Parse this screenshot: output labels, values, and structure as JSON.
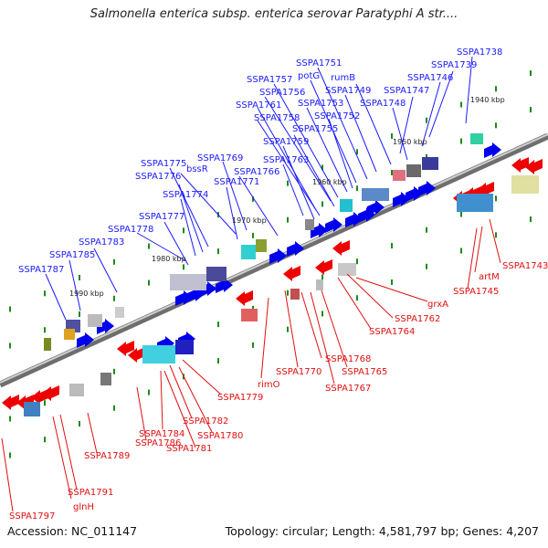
{
  "title": "Salmonella enterica subsp. enterica serovar Paratyphi A str....",
  "footer": {
    "accession": "Accession: NC_011147",
    "summary": "Topology: circular; Length: 4,581,797 bp; Genes: 4,207"
  },
  "colors": {
    "top_strand": "#0000ee",
    "bottom_strand": "#ee0000",
    "top_label": "#1a1aff",
    "bottom_label": "#e01010",
    "backbone": "#888888",
    "tick": "#1a8a1a"
  },
  "kbp_labels": [
    "1940 kbp",
    "1950 kbp",
    "1960 kbp",
    "1970 kbp",
    "1980 kbp",
    "1990 kbp"
  ],
  "top_genes": [
    "SSPA1738",
    "SSPA1739",
    "SSPA1746",
    "SSPA1747",
    "SSPA1748",
    "rumB",
    "SSPA1749",
    "SSPA1751",
    "potG",
    "SSPA1752",
    "SSPA1753",
    "SSPA1757",
    "SSPA1756",
    "SSPA1755",
    "SSPA1761",
    "SSPA1758",
    "SSPA1759",
    "SSPA1763",
    "SSPA1769",
    "bssR",
    "SSPA1775",
    "SSPA1776",
    "SSPA1771",
    "SSPA1774",
    "SSPA1766",
    "SSPA1777",
    "SSPA1778",
    "SSPA1783",
    "SSPA1785",
    "SSPA1787"
  ],
  "bottom_genes": [
    "SSPA1743",
    "artM",
    "SSPA1745",
    "grxA",
    "SSPA1762",
    "SSPA1764",
    "SSPA1768",
    "SSPA1770",
    "SSPA1765",
    "SSPA1767",
    "rimO",
    "SSPA1779",
    "SSPA1782",
    "SSPA1784",
    "SSPA1780",
    "SSPA1781",
    "SSPA1786",
    "SSPA1789",
    "SSPA1791",
    "glnH",
    "SSPA1797"
  ]
}
